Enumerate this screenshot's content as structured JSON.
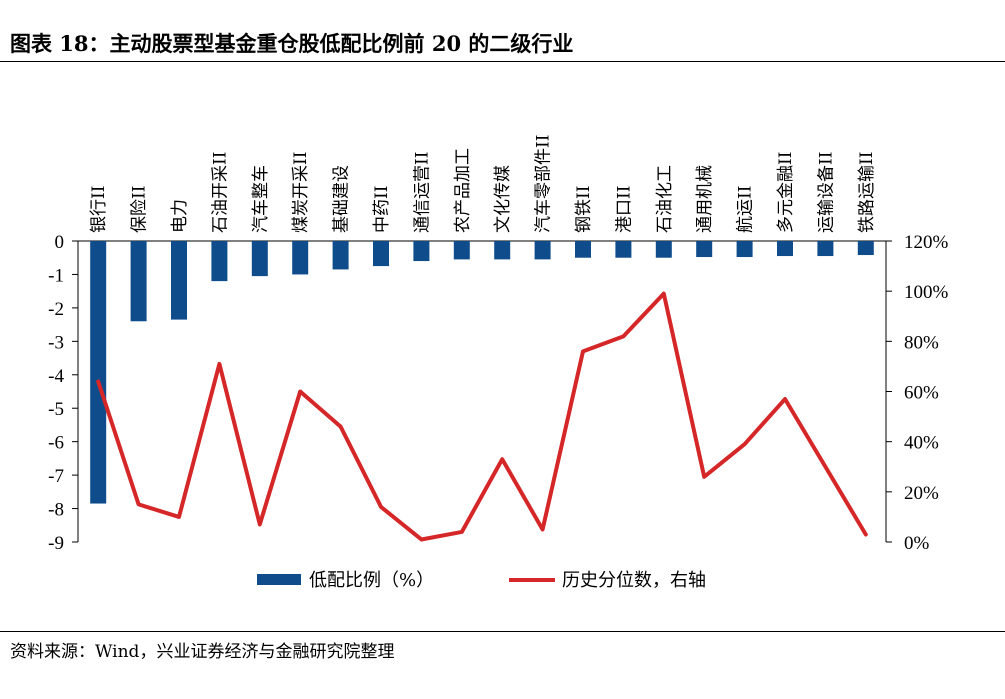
{
  "title": "图表 18：主动股票型基金重仓股低配比例前 20 的二级行业",
  "source": "资料来源：Wind，兴业证券经济与金融研究院整理",
  "colors": {
    "bar": "#0f4c8c",
    "line": "#d62728"
  },
  "chart_data": {
    "type": "bar",
    "categories": [
      "银行II",
      "保险II",
      "电力",
      "石油开采II",
      "汽车整车",
      "煤炭开采II",
      "基础建设",
      "中药II",
      "通信运营II",
      "农产品加工",
      "文化传媒",
      "汽车零部件II",
      "钢铁II",
      "港口II",
      "石油化工",
      "通用机械",
      "航运II",
      "多元金融II",
      "运输设备II",
      "铁路运输II"
    ],
    "series": [
      {
        "name": "低配比例（%）",
        "kind": "bar",
        "axis": "left",
        "values": [
          -7.85,
          -2.4,
          -2.35,
          -1.2,
          -1.05,
          -1.0,
          -0.85,
          -0.75,
          -0.6,
          -0.55,
          -0.55,
          -0.55,
          -0.5,
          -0.5,
          -0.5,
          -0.48,
          -0.48,
          -0.45,
          -0.45,
          -0.42
        ]
      },
      {
        "name": "历史分位数，右轴",
        "kind": "line",
        "axis": "right",
        "values": [
          64,
          15,
          10,
          71,
          7,
          60,
          46,
          14,
          1,
          4,
          33,
          5,
          76,
          82,
          99,
          26,
          39,
          57,
          30,
          3
        ]
      }
    ],
    "y_left": {
      "ylim": [
        -9,
        0
      ],
      "ticks": [
        "0",
        "-1",
        "-2",
        "-3",
        "-4",
        "-5",
        "-6",
        "-7",
        "-8",
        "-9"
      ]
    },
    "y_right": {
      "ylim": [
        0,
        120
      ],
      "ticks": [
        "120%",
        "100%",
        "80%",
        "60%",
        "40%",
        "20%",
        "0%"
      ]
    },
    "legend": "bottom",
    "grid": false
  }
}
